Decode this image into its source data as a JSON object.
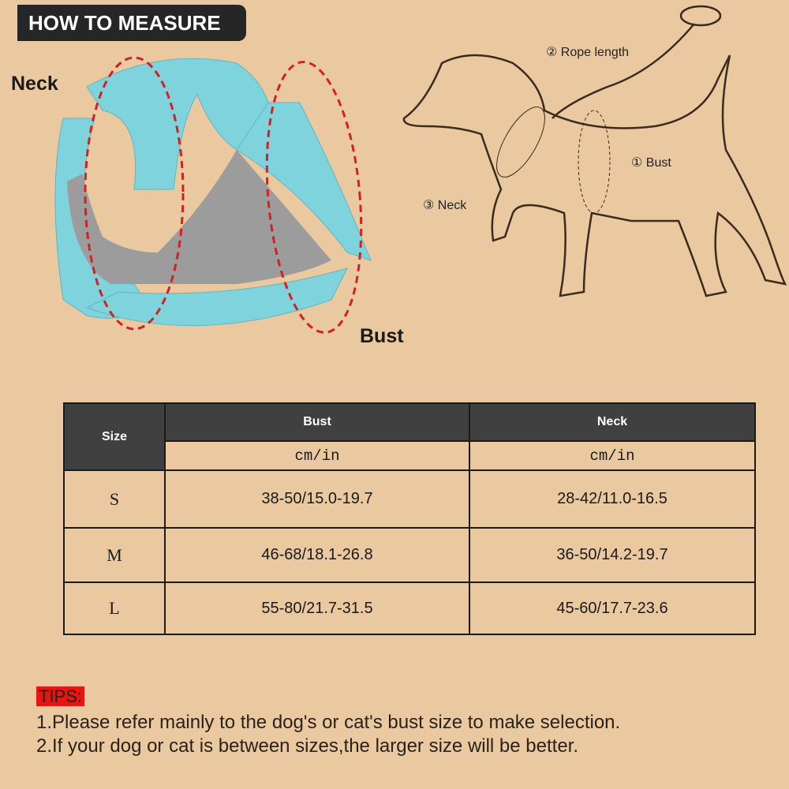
{
  "header": {
    "title": "HOW TO MEASURE"
  },
  "harness_labels": {
    "neck": "Neck",
    "bust": "Bust"
  },
  "dog_labels": {
    "rope": "② Rope length",
    "bust": "① Bust",
    "neck": "③ Neck"
  },
  "table": {
    "headers": {
      "size": "Size",
      "bust": "Bust",
      "neck": "Neck",
      "unit": "cm/in"
    },
    "rows": [
      {
        "size": "S",
        "bust": "38-50/15.0-19.7",
        "neck": "28-42/11.0-16.5"
      },
      {
        "size": "M",
        "bust": "46-68/18.1-26.8",
        "neck": "36-50/14.2-19.7"
      },
      {
        "size": "L",
        "bust": "55-80/21.7-31.5",
        "neck": "45-60/17.7-23.6"
      }
    ]
  },
  "tips": {
    "label": "TIPS:",
    "items": [
      "1.Please refer mainly to the dog's or cat's  bust size to make selection.",
      "2.If your dog or cat is between sizes,the larger size will be better."
    ]
  },
  "colors": {
    "background": "#ebc9a0",
    "header_bg": "#404040",
    "tips_bg": "#e8140f",
    "harness": "#7fd3dc",
    "dash": "#d42020"
  }
}
